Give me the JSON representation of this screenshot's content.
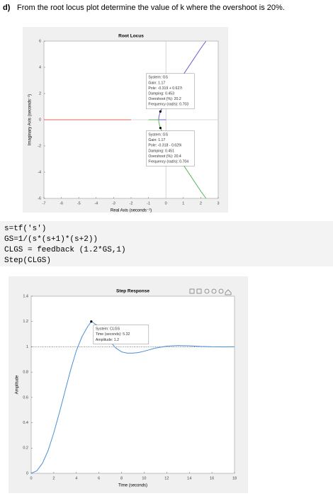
{
  "question": {
    "label": "d)",
    "text": "From the root locus plot determine the value of k where the overshoot is 20%."
  },
  "code": [
    "s=tf('s')",
    "GS=1/(s*(s+1)*(s+2))",
    "CLGS = feedback (1.2*GS,1)",
    "Step(CLGS)"
  ],
  "chart_data": [
    {
      "type": "line",
      "title": "Root Locus",
      "x_label": "Real Axis (seconds⁻¹)",
      "y_label": "Imaginary Axis (seconds⁻¹)",
      "xlim": [
        -7,
        3
      ],
      "ylim": [
        -6,
        6
      ],
      "xticks": [
        -7,
        -6,
        -5,
        -4,
        -3,
        -2,
        -1,
        0,
        1,
        2,
        3
      ],
      "yticks": [
        -6,
        -4,
        -2,
        0,
        2,
        4,
        6
      ],
      "grid": false,
      "series": [
        {
          "color": "#e8605a",
          "x": [
            -7,
            -2
          ],
          "values": [
            0,
            0
          ]
        },
        {
          "color": "#6f5fd8",
          "x": [
            0,
            -0.42,
            -0.4,
            -0.32,
            -0.2,
            0,
            0.5,
            1,
            1.5,
            2,
            2.3
          ],
          "values": [
            0,
            0,
            0.25,
            0.63,
            0.95,
            1.41,
            2.45,
            3.45,
            4.45,
            5.45,
            6
          ]
        },
        {
          "color": "#5cb85c",
          "x": [
            -1,
            -0.42,
            -0.4,
            -0.32,
            -0.2,
            0,
            0.5,
            1,
            1.5,
            2,
            2.3
          ],
          "values": [
            0,
            0,
            -0.25,
            -0.63,
            -0.95,
            -1.41,
            -2.45,
            -3.45,
            -4.45,
            -5.45,
            -6
          ]
        }
      ],
      "annotations": [
        {
          "point": [
            -0.319,
            0.627
          ],
          "lines": [
            "System: GS",
            "Gain: 1.17",
            "Pole: -0.319 + 0.627i",
            "Damping: 0.453",
            "Overshoot (%): 20.2",
            "Frequency (rad/s): 0.703"
          ]
        },
        {
          "point": [
            -0.318,
            -0.629
          ],
          "lines": [
            "System: GS",
            "Gain: 1.17",
            "Pole: -0.318 - 0.629i",
            "Damping: 0.451",
            "Overshoot (%): 20.4",
            "Frequency (rad/s): 0.704"
          ]
        }
      ]
    },
    {
      "type": "line",
      "title": "Step Response",
      "x_label": "Time (seconds)",
      "y_label": "Amplitude",
      "xlim": [
        0,
        18
      ],
      "ylim": [
        0,
        1.4
      ],
      "xticks": [
        0,
        2,
        4,
        6,
        8,
        10,
        12,
        14,
        16,
        18
      ],
      "yticks": [
        0,
        0.2,
        0.4,
        0.6,
        0.8,
        1,
        1.2,
        1.4
      ],
      "grid": false,
      "reference_line": 1,
      "series": [
        {
          "color": "#4a90d9",
          "x": [
            0,
            0.5,
            1,
            1.5,
            2,
            2.5,
            3,
            3.5,
            4,
            4.5,
            5,
            5.32,
            5.5,
            6,
            6.5,
            7,
            7.5,
            8,
            8.5,
            9,
            9.5,
            10,
            11,
            12,
            13,
            14,
            15,
            16,
            17,
            18
          ],
          "values": [
            0,
            0.02,
            0.08,
            0.18,
            0.32,
            0.48,
            0.65,
            0.82,
            0.97,
            1.08,
            1.16,
            1.2,
            1.19,
            1.16,
            1.1,
            1.04,
            0.99,
            0.96,
            0.95,
            0.95,
            0.955,
            0.965,
            0.99,
            1.005,
            1.01,
            1.008,
            1.003,
            1.0,
            0.999,
            1.0
          ]
        }
      ],
      "annotations": [
        {
          "point": [
            5.32,
            1.2
          ],
          "lines": [
            "System: CLGS",
            "Time (seconds): 5.32",
            "Amplitude: 1.2"
          ]
        }
      ]
    }
  ]
}
